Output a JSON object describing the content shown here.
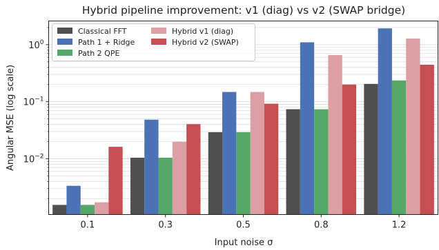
{
  "chart_data": {
    "type": "bar",
    "title": "Hybrid pipeline improvement: v1 (diag) vs v2 (SWAP bridge)",
    "xlabel": "Input noise σ",
    "ylabel": "Angular MSE  (log scale)",
    "yscale": "log",
    "ylim": [
      0.00105,
      2.6
    ],
    "yticks": [
      {
        "value": 0.01,
        "base": "10",
        "exp": "−2"
      },
      {
        "value": 0.1,
        "base": "10",
        "exp": "−1"
      },
      {
        "value": 1,
        "base": "10",
        "exp": "0"
      }
    ],
    "grid": "horizontal",
    "legend_position": "top-left",
    "categories": [
      "0.1",
      "0.3",
      "0.5",
      "0.8",
      "1.2"
    ],
    "series": [
      {
        "name": "Classical FFT",
        "color": "#505050",
        "values": [
          0.00155,
          0.0104,
          0.0292,
          0.0738,
          0.205
        ]
      },
      {
        "name": "Path 1 + Ridge",
        "color": "#4a72b5",
        "values": [
          0.00335,
          0.0484,
          0.148,
          1.1,
          1.93
        ]
      },
      {
        "name": "Path 2 QPE",
        "color": "#55a868",
        "values": [
          0.00155,
          0.0104,
          0.0292,
          0.0738,
          0.236
        ]
      },
      {
        "name": "Hybrid v1 (diag)",
        "color": "#dc9fa3",
        "values": [
          0.00172,
          0.0198,
          0.148,
          0.658,
          1.28
        ]
      },
      {
        "name": "Hybrid v2 (SWAP)",
        "color": "#c44e52",
        "values": [
          0.0162,
          0.0404,
          0.0922,
          0.2,
          0.445
        ]
      }
    ]
  }
}
